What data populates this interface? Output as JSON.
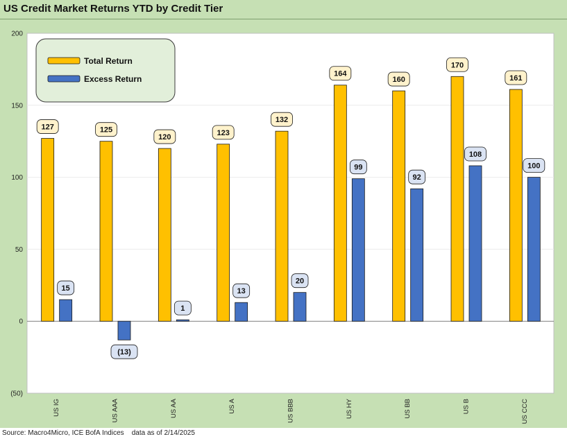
{
  "title": "US Credit Market Returns YTD by Credit Tier",
  "source": "Source: Macro4Micro, ICE BofA Indices    data as of 2/14/2025",
  "colors": {
    "total_return": "#ffc000",
    "excess_return": "#4472c4",
    "frame": "#c6e0b4",
    "legend_bg": "#e2efda",
    "label_total_bg": "#fff2cc",
    "label_excess_bg": "#dae3f3"
  },
  "chart_data": {
    "type": "bar",
    "categories": [
      "US IG",
      "US AAA",
      "US AA",
      "US A",
      "US BBB",
      "US HY",
      "US BB",
      "US B",
      "US CCC"
    ],
    "series": [
      {
        "name": "Total Return",
        "values": [
          127,
          125,
          120,
          123,
          132,
          164,
          160,
          170,
          161
        ]
      },
      {
        "name": "Excess Return",
        "values": [
          15,
          -13,
          1,
          13,
          20,
          99,
          92,
          108,
          100
        ]
      }
    ],
    "data_labels": [
      [
        "127",
        "125",
        "120",
        "123",
        "132",
        "164",
        "160",
        "170",
        "161"
      ],
      [
        "15",
        "(13)",
        "1",
        "13",
        "20",
        "99",
        "92",
        "108",
        "100"
      ]
    ],
    "ylim": [
      -50,
      200
    ],
    "yticks": [
      -50,
      0,
      50,
      100,
      150,
      200
    ],
    "ytick_labels": [
      "(50)",
      "0",
      "50",
      "100",
      "150",
      "200"
    ],
    "xlabel": "",
    "ylabel": "",
    "grid": true,
    "legend_position": "top-left"
  }
}
